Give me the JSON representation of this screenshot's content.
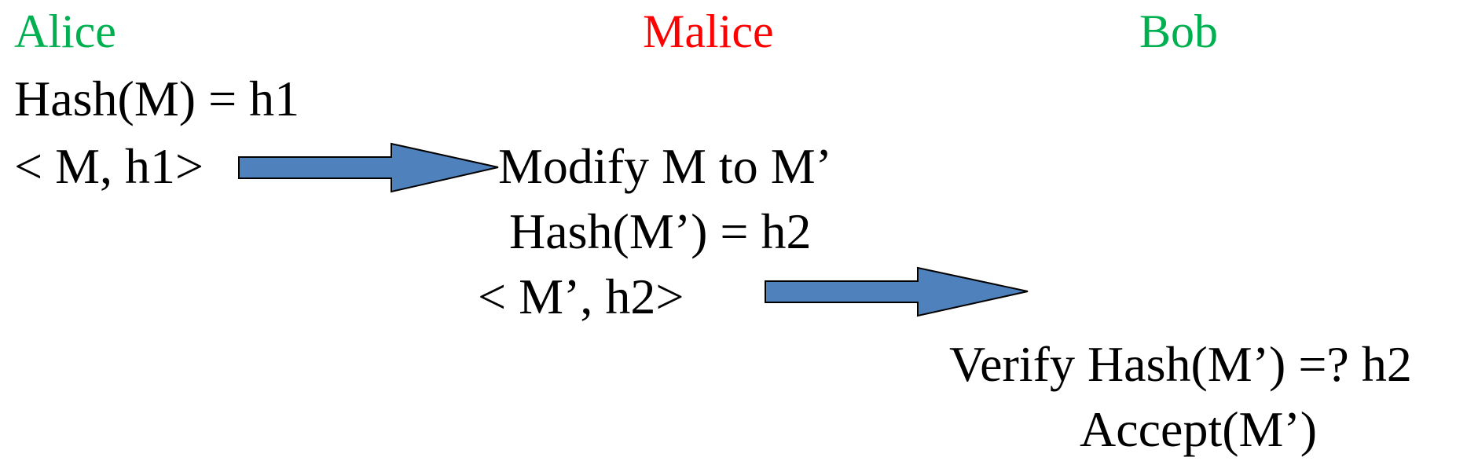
{
  "parties": {
    "alice": {
      "label": "Alice",
      "color": "#00b050"
    },
    "malice": {
      "label": "Malice",
      "color": "#ff0000"
    },
    "bob": {
      "label": "Bob",
      "color": "#00b050"
    }
  },
  "alice": {
    "hash_step": "Hash(M) = h1",
    "message": "< M, h1>"
  },
  "malice": {
    "modify_step": "Modify M to M’",
    "hash_step": "Hash(M’) = h2",
    "message": "< M’, h2>"
  },
  "bob": {
    "verify_step": "Verify Hash(M’) =? h2",
    "accept_step": "Accept(M’)"
  },
  "arrows": {
    "fill_color": "#4f81bd",
    "stroke_color": "#000000"
  }
}
